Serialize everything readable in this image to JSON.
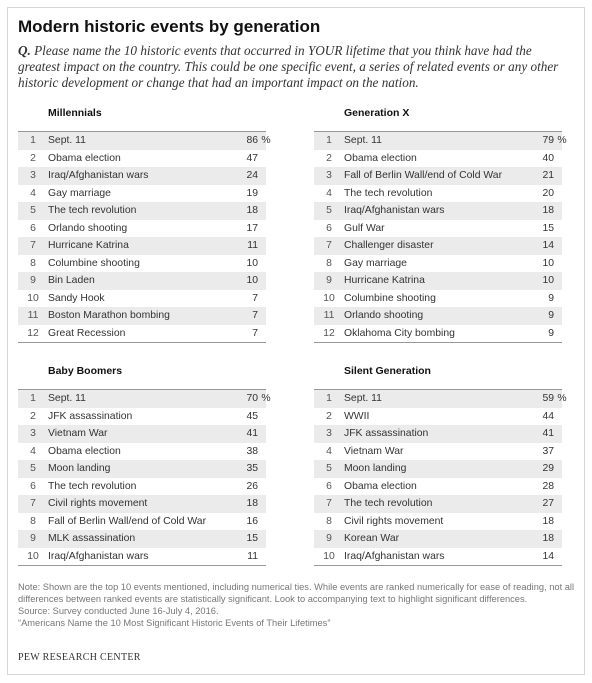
{
  "title": "Modern historic events by generation",
  "question_prefix": "Q.",
  "question": "Please name the 10 historic events that occurred in YOUR lifetime that you think have had the greatest impact on the country. This could be one specific event, a series of related events or any other historic development or change that had an important impact on the nation.",
  "note": "Note: Shown are the top 10 events mentioned, including numerical ties. While events are ranked numerically for ease of reading, not all differences between ranked events are statistically significant. Look to accompanying text to highlight significant differences.",
  "source": "Source: Survey conducted June 16-July 4, 2016.",
  "report": "“Americans Name the 10 Most Significant Historic Events of Their Lifetimes”",
  "brand": "PEW RESEARCH CENTER",
  "chart_data": [
    {
      "type": "table",
      "title": "Millennials",
      "unit_suffix": "%",
      "rows": [
        {
          "rank": "1",
          "event": "Sept. 11",
          "value": 86
        },
        {
          "rank": "2",
          "event": "Obama election",
          "value": 47
        },
        {
          "rank": "3",
          "event": "Iraq/Afghanistan wars",
          "value": 24
        },
        {
          "rank": "4",
          "event": "Gay marriage",
          "value": 19
        },
        {
          "rank": "5",
          "event": "The tech revolution",
          "value": 18
        },
        {
          "rank": "6",
          "event": "Orlando shooting",
          "value": 17
        },
        {
          "rank": "7",
          "event": "Hurricane Katrina",
          "value": 11
        },
        {
          "rank": "8",
          "event": "Columbine shooting",
          "value": 10
        },
        {
          "rank": "9",
          "event": "Bin Laden",
          "value": 10
        },
        {
          "rank": "10",
          "event": "Sandy Hook",
          "value": 7
        },
        {
          "rank": "11",
          "event": "Boston Marathon bombing",
          "value": 7
        },
        {
          "rank": "12",
          "event": "Great Recession",
          "value": 7
        }
      ]
    },
    {
      "type": "table",
      "title": "Generation X",
      "unit_suffix": "%",
      "rows": [
        {
          "rank": "1",
          "event": "Sept. 11",
          "value": 79
        },
        {
          "rank": "2",
          "event": "Obama election",
          "value": 40
        },
        {
          "rank": "3",
          "event": "Fall of Berlin Wall/end of Cold War",
          "value": 21
        },
        {
          "rank": "4",
          "event": "The tech revolution",
          "value": 20
        },
        {
          "rank": "5",
          "event": "Iraq/Afghanistan wars",
          "value": 18
        },
        {
          "rank": "6",
          "event": "Gulf War",
          "value": 15
        },
        {
          "rank": "7",
          "event": "Challenger disaster",
          "value": 14
        },
        {
          "rank": "8",
          "event": "Gay marriage",
          "value": 10
        },
        {
          "rank": "9",
          "event": "Hurricane Katrina",
          "value": 10
        },
        {
          "rank": "10",
          "event": "Columbine shooting",
          "value": 9
        },
        {
          "rank": "11",
          "event": "Orlando shooting",
          "value": 9
        },
        {
          "rank": "12",
          "event": "Oklahoma City bombing",
          "value": 9
        }
      ]
    },
    {
      "type": "table",
      "title": "Baby Boomers",
      "unit_suffix": "%",
      "rows": [
        {
          "rank": "1",
          "event": "Sept. 11",
          "value": 70
        },
        {
          "rank": "2",
          "event": "JFK assassination",
          "value": 45
        },
        {
          "rank": "3",
          "event": "Vietnam War",
          "value": 41
        },
        {
          "rank": "4",
          "event": "Obama election",
          "value": 38
        },
        {
          "rank": "5",
          "event": "Moon landing",
          "value": 35
        },
        {
          "rank": "6",
          "event": "The tech revolution",
          "value": 26
        },
        {
          "rank": "7",
          "event": "Civil rights movement",
          "value": 18
        },
        {
          "rank": "8",
          "event": "Fall of Berlin Wall/end of Cold War",
          "value": 16
        },
        {
          "rank": "9",
          "event": "MLK assassination",
          "value": 15
        },
        {
          "rank": "10",
          "event": "Iraq/Afghanistan wars",
          "value": 11
        }
      ]
    },
    {
      "type": "table",
      "title": "Silent Generation",
      "unit_suffix": "%",
      "rows": [
        {
          "rank": "1",
          "event": "Sept. 11",
          "value": 59
        },
        {
          "rank": "2",
          "event": "WWII",
          "value": 44
        },
        {
          "rank": "3",
          "event": "JFK assassination",
          "value": 41
        },
        {
          "rank": "4",
          "event": "Vietnam War",
          "value": 37
        },
        {
          "rank": "5",
          "event": "Moon landing",
          "value": 29
        },
        {
          "rank": "6",
          "event": "Obama election",
          "value": 28
        },
        {
          "rank": "7",
          "event": "The tech revolution",
          "value": 27
        },
        {
          "rank": "8",
          "event": "Civil rights movement",
          "value": 18
        },
        {
          "rank": "9",
          "event": "Korean War",
          "value": 18
        },
        {
          "rank": "10",
          "event": "Iraq/Afghanistan wars",
          "value": 14
        }
      ]
    }
  ]
}
